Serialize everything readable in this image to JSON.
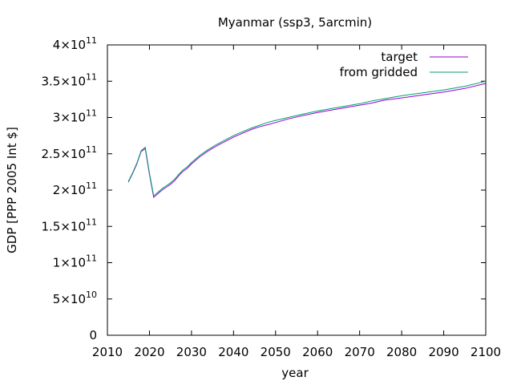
{
  "chart_data": {
    "type": "line",
    "title": "Myanmar (ssp3, 5arcmin)",
    "xlabel": "year",
    "ylabel": "GDP [PPP 2005 Int $]",
    "xlim": [
      2010,
      2100
    ],
    "ylim": [
      0,
      400000000000
    ],
    "xticks": [
      2010,
      2020,
      2030,
      2040,
      2050,
      2060,
      2070,
      2080,
      2090,
      2100
    ],
    "xtick_labels": [
      "2010",
      "2020",
      "2030",
      "2040",
      "2050",
      "2060",
      "2070",
      "2080",
      "2090",
      "2100"
    ],
    "yticks": [
      0,
      50000000000,
      100000000000,
      150000000000,
      200000000000,
      250000000000,
      300000000000,
      350000000000,
      400000000000
    ],
    "ytick_labels": [
      {
        "mantissa": "0",
        "exponent": ""
      },
      {
        "mantissa": "5×10",
        "exponent": "10"
      },
      {
        "mantissa": "1×10",
        "exponent": "11"
      },
      {
        "mantissa": "1.5×10",
        "exponent": "11"
      },
      {
        "mantissa": "2×10",
        "exponent": "11"
      },
      {
        "mantissa": "2.5×10",
        "exponent": "11"
      },
      {
        "mantissa": "3×10",
        "exponent": "11"
      },
      {
        "mantissa": "3.5×10",
        "exponent": "11"
      },
      {
        "mantissa": "4×10",
        "exponent": "11"
      }
    ],
    "grid": false,
    "legend_position": "top-right",
    "series": [
      {
        "name": "target",
        "color": "#9400d3",
        "x": [
          2015,
          2016,
          2017,
          2018,
          2019,
          2020,
          2021,
          2022,
          2023,
          2024,
          2025,
          2026,
          2027,
          2028,
          2029,
          2030,
          2032,
          2034,
          2036,
          2038,
          2040,
          2042,
          2044,
          2046,
          2048,
          2050,
          2053,
          2056,
          2060,
          2065,
          2070,
          2073,
          2076,
          2080,
          2085,
          2090,
          2095,
          2100
        ],
        "y": [
          211000000000,
          223000000000,
          236000000000,
          253000000000,
          257000000000,
          222000000000,
          190000000000,
          195000000000,
          200000000000,
          204000000000,
          208000000000,
          213000000000,
          220000000000,
          226000000000,
          230000000000,
          236000000000,
          246000000000,
          254000000000,
          261000000000,
          267000000000,
          273000000000,
          278000000000,
          283000000000,
          287000000000,
          290000000000,
          293000000000,
          298000000000,
          302000000000,
          307000000000,
          312000000000,
          317000000000,
          320000000000,
          324000000000,
          327000000000,
          331000000000,
          335000000000,
          340000000000,
          347000000000
        ]
      },
      {
        "name": "from gridded",
        "color": "#009e73",
        "x": [
          2015,
          2016,
          2017,
          2018,
          2019,
          2020,
          2021,
          2022,
          2023,
          2024,
          2025,
          2026,
          2027,
          2028,
          2029,
          2030,
          2032,
          2034,
          2036,
          2038,
          2040,
          2042,
          2044,
          2046,
          2048,
          2050,
          2053,
          2056,
          2060,
          2065,
          2070,
          2073,
          2076,
          2080,
          2085,
          2090,
          2095,
          2100
        ],
        "y": [
          212000000000,
          224000000000,
          237000000000,
          254000000000,
          259000000000,
          224000000000,
          192000000000,
          197000000000,
          202000000000,
          206000000000,
          210000000000,
          215000000000,
          222000000000,
          228000000000,
          232000000000,
          238000000000,
          248000000000,
          256000000000,
          263000000000,
          269000000000,
          275000000000,
          280000000000,
          285000000000,
          289000000000,
          293000000000,
          296000000000,
          300000000000,
          304000000000,
          309000000000,
          314000000000,
          319000000000,
          323000000000,
          326000000000,
          330000000000,
          334000000000,
          338000000000,
          343000000000,
          350000000000
        ]
      }
    ]
  }
}
